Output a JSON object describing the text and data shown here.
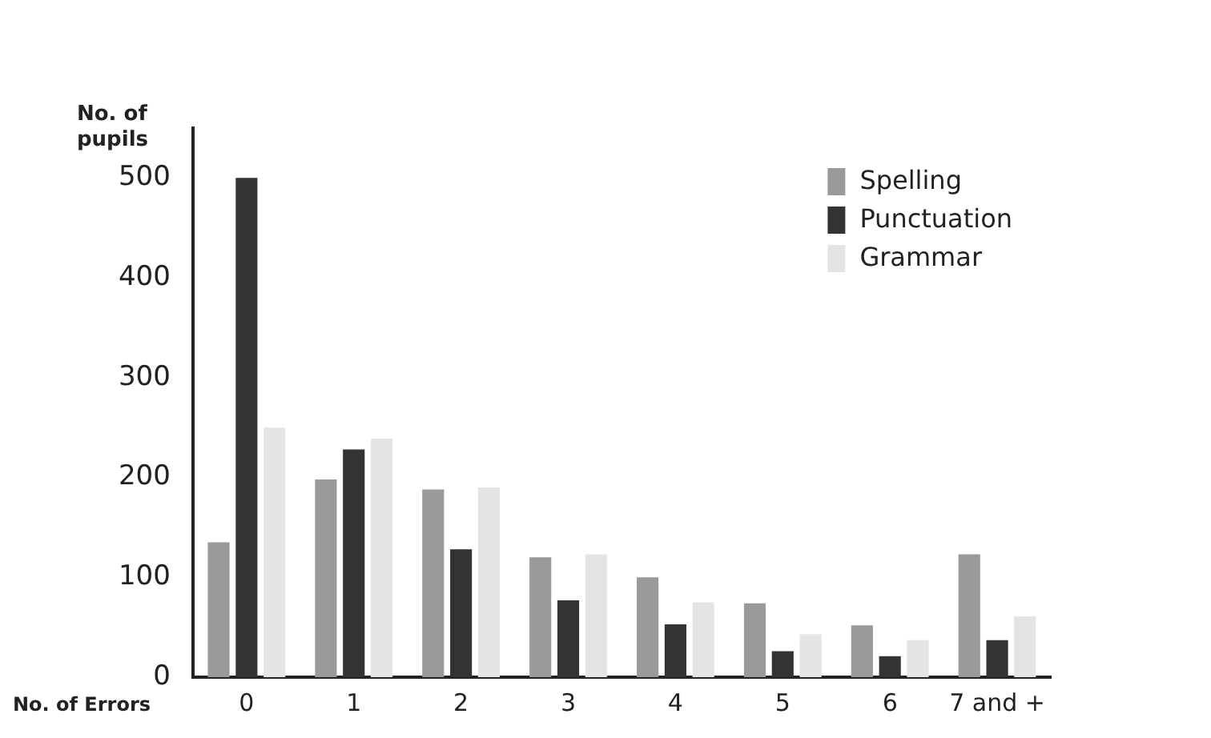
{
  "chart_data": {
    "type": "bar",
    "ylabel": "No. of pupils",
    "xlabel": "No. of Errors",
    "categories": [
      "0",
      "1",
      "2",
      "3",
      "4",
      "5",
      "6",
      "7 and +"
    ],
    "series": [
      {
        "name": "Spelling",
        "color": "#9a9a9a",
        "values": [
          135,
          198,
          188,
          120,
          100,
          74,
          52,
          123
        ]
      },
      {
        "name": "Punctuation",
        "color": "#333333",
        "values": [
          500,
          228,
          128,
          77,
          53,
          26,
          21,
          37
        ]
      },
      {
        "name": "Grammar",
        "color": "#e4e4e4",
        "values": [
          250,
          239,
          190,
          123,
          75,
          43,
          37,
          61
        ]
      }
    ],
    "ylim": [
      0,
      550
    ],
    "yticks": [
      0,
      100,
      200,
      300,
      400,
      500
    ],
    "grid": false,
    "legend": "top right"
  }
}
